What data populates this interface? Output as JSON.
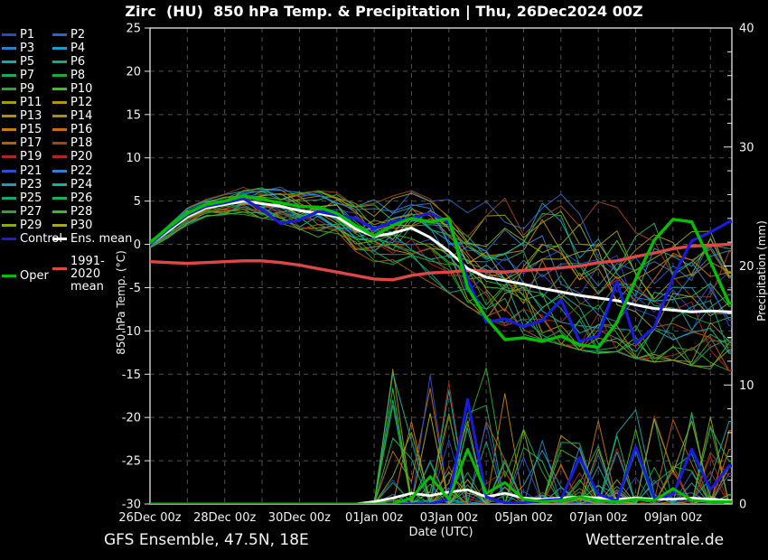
{
  "header": {
    "title": "Zirc  (HU)  850 hPa Temp. & Precipitation | Thu, 26Dec2024 00Z"
  },
  "footer": {
    "left": "GFS Ensemble, 47.5N, 18E",
    "right": "Wetterzentrale.de"
  },
  "legend": {
    "members": [
      {
        "label": "P1",
        "color": "#2846c8"
      },
      {
        "label": "P2",
        "color": "#2866c8"
      },
      {
        "label": "P3",
        "color": "#2382c8"
      },
      {
        "label": "P4",
        "color": "#14a0c8"
      },
      {
        "label": "P5",
        "color": "#0faaaa"
      },
      {
        "label": "P6",
        "color": "#0faa82"
      },
      {
        "label": "P7",
        "color": "#14aa5f"
      },
      {
        "label": "P8",
        "color": "#1eaa37"
      },
      {
        "label": "P9",
        "color": "#28aa1e"
      },
      {
        "label": "P10",
        "color": "#32c814"
      },
      {
        "label": "P11",
        "color": "#a0a000"
      },
      {
        "label": "P12",
        "color": "#b49600"
      },
      {
        "label": "P13",
        "color": "#b98c00"
      },
      {
        "label": "P14",
        "color": "#a99100"
      },
      {
        "label": "P15",
        "color": "#c87d00"
      },
      {
        "label": "P16",
        "color": "#c86e00"
      },
      {
        "label": "P17",
        "color": "#be5a00"
      },
      {
        "label": "P18",
        "color": "#a94114"
      },
      {
        "label": "P19",
        "color": "#a92819"
      },
      {
        "label": "P20",
        "color": "#b42323"
      },
      {
        "label": "P21",
        "color": "#2850d2"
      },
      {
        "label": "P22",
        "color": "#2882d2"
      },
      {
        "label": "P23",
        "color": "#14a0b9"
      },
      {
        "label": "P24",
        "color": "#0fb4a0"
      },
      {
        "label": "P25",
        "color": "#0faa78"
      },
      {
        "label": "P26",
        "color": "#19b45a"
      },
      {
        "label": "P27",
        "color": "#23aa28"
      },
      {
        "label": "P28",
        "color": "#3cbe19"
      },
      {
        "label": "P29",
        "color": "#8caa0f"
      },
      {
        "label": "P30",
        "color": "#aaaa19"
      }
    ],
    "control": {
      "label": "Control",
      "color": "#1a1ae0"
    },
    "ens_mean": {
      "label": "Ens. mean",
      "color": "#ffffff"
    },
    "climate": {
      "label": "1991-2020 mean",
      "label_line1": "1991-2020",
      "label_line2": "mean",
      "color": "#e04646"
    },
    "oper": {
      "label": "Oper",
      "color": "#00c000"
    }
  },
  "chart_data": {
    "type": "line",
    "title": "Zirc (HU) 850 hPa Temp. & Precipitation | Thu, 26Dec2024 00Z",
    "xlabel": "Date (UTC)",
    "x_unit": "days since 26Dec2024 00Z",
    "x": [
      0,
      0.5,
      1,
      1.5,
      2,
      2.5,
      3,
      3.5,
      4,
      4.5,
      5,
      5.5,
      6,
      6.5,
      7,
      7.5,
      8,
      8.5,
      9,
      9.5,
      10,
      10.5,
      11,
      11.5,
      12,
      12.5,
      13,
      13.5,
      14,
      14.5,
      15,
      15.5
    ],
    "x_tick_days": [
      0,
      2,
      4,
      6,
      8,
      10,
      12,
      14
    ],
    "x_tick_labels": [
      "26Dec 00z",
      "28Dec 00z",
      "30Dec 00z",
      "01Jan 00z",
      "03Jan 00z",
      "05Jan 00z",
      "07Jan 00z",
      "09Jan 00z"
    ],
    "x_range_days": [
      0,
      15.57
    ],
    "temp_axis": {
      "label": "850 hPa Temp. (°C)",
      "ticks": [
        25,
        20,
        15,
        10,
        5,
        0,
        -5,
        -10,
        -15,
        -20,
        -25,
        -30
      ],
      "range": [
        25,
        -30
      ]
    },
    "precip_axis": {
      "label": "Precipitation (mm)",
      "ticks": [
        0,
        10,
        20,
        30,
        40
      ],
      "minor_step": 2,
      "range": [
        0,
        40
      ]
    },
    "grid": true,
    "legend_position": "left",
    "series": {
      "ens_mean_temp": [
        0.0,
        1.6,
        3.2,
        4.2,
        4.6,
        5.0,
        4.7,
        4.4,
        3.9,
        3.6,
        3.2,
        1.8,
        0.9,
        1.3,
        1.9,
        0.8,
        -0.8,
        -2.8,
        -3.8,
        -4.2,
        -4.6,
        -5.1,
        -5.5,
        -5.9,
        -6.2,
        -6.5,
        -7.0,
        -7.4,
        -7.6,
        -7.8,
        -7.7,
        -7.8
      ],
      "control_temp": [
        0.0,
        1.8,
        3.4,
        4.4,
        4.8,
        5.3,
        4.0,
        2.4,
        2.8,
        3.8,
        3.4,
        3.0,
        1.8,
        2.6,
        3.0,
        3.6,
        2.5,
        -4.0,
        -9.0,
        -8.6,
        -9.5,
        -8.8,
        -6.4,
        -11.2,
        -10.6,
        -4.3,
        -11.4,
        -9.6,
        -3.8,
        0.4,
        1.4,
        2.6
      ],
      "oper_temp": [
        0.2,
        2.0,
        3.6,
        4.6,
        5.0,
        5.6,
        5.2,
        4.8,
        4.4,
        4.3,
        3.6,
        2.2,
        1.0,
        2.2,
        3.0,
        2.6,
        3.0,
        -5.0,
        -8.5,
        -11.0,
        -10.8,
        -11.2,
        -10.6,
        -11.6,
        -11.9,
        -9.0,
        -4.0,
        0.5,
        2.9,
        2.6,
        -2.0,
        -6.8
      ],
      "climate_mean_temp": [
        -2.0,
        -2.1,
        -2.2,
        -2.1,
        -2.0,
        -1.9,
        -1.9,
        -2.1,
        -2.4,
        -2.8,
        -3.2,
        -3.6,
        -4.0,
        -4.1,
        -3.6,
        -3.3,
        -3.2,
        -3.0,
        -3.1,
        -3.2,
        -3.0,
        -2.9,
        -2.7,
        -2.5,
        -2.1,
        -1.9,
        -1.4,
        -1.0,
        -0.5,
        -0.2,
        -0.1,
        0.0
      ],
      "ens_mean_precip": [
        0,
        0,
        0,
        0,
        0,
        0,
        0,
        0,
        0,
        0,
        0,
        0,
        0.2,
        0.5,
        0.9,
        0.7,
        1.0,
        1.2,
        0.6,
        0.9,
        0.5,
        0.4,
        0.5,
        0.6,
        0.5,
        0.4,
        0.5,
        0.4,
        0.4,
        0.5,
        0.4,
        0.3
      ],
      "control_precip": [
        0,
        0,
        0,
        0,
        0,
        0,
        0,
        0,
        0,
        0,
        0,
        0,
        0,
        0,
        0,
        0,
        0.4,
        8.8,
        0.6,
        0.1,
        0.1,
        0.3,
        0.4,
        3.9,
        0.8,
        0.3,
        4.8,
        0.5,
        0.8,
        4.6,
        1.2,
        3.2
      ],
      "oper_precip": [
        0,
        0,
        0,
        0,
        0,
        0,
        0,
        0,
        0,
        0,
        0,
        0,
        0,
        0,
        0.5,
        2.3,
        0.4,
        4.6,
        0.9,
        1.8,
        0.4,
        0.2,
        0.3,
        0.6,
        0.3,
        0.2,
        0.4,
        0.3,
        1.3,
        0.3,
        0.2,
        0.2
      ]
    },
    "ensemble_envelope": {
      "temp_min": [
        -0.4,
        0.8,
        2.2,
        3.0,
        3.2,
        3.0,
        2.4,
        1.6,
        1.2,
        0.8,
        0.3,
        -0.8,
        -2.2,
        -2.6,
        -3.4,
        -4.4,
        -5.6,
        -7.2,
        -8.6,
        -9.4,
        -10.4,
        -11.0,
        -11.6,
        -12.2,
        -12.6,
        -12.4,
        -13.2,
        -13.6,
        -13.4,
        -14.0,
        -14.4,
        -14.6
      ],
      "temp_max": [
        0.5,
        2.4,
        4.2,
        5.2,
        5.8,
        6.6,
        6.8,
        6.6,
        6.4,
        6.2,
        6.0,
        5.6,
        5.2,
        5.6,
        6.2,
        6.4,
        6.6,
        6.4,
        6.8,
        7.2,
        7.6,
        8.2,
        7.0,
        6.0,
        5.6,
        5.4,
        5.0,
        4.6,
        4.4,
        4.2,
        4.0,
        3.6
      ],
      "member_precip_max_mm": 12,
      "precip_onset_day": 6.5
    },
    "colors": {
      "background": "#000000",
      "grid": "#4f4f4f",
      "axis": "#e6e6e6",
      "tick_text": "#f2f2f2",
      "control": "#1a1ae0",
      "ens_mean": "#ffffff",
      "oper": "#00c000",
      "climate": "#e04646"
    }
  }
}
